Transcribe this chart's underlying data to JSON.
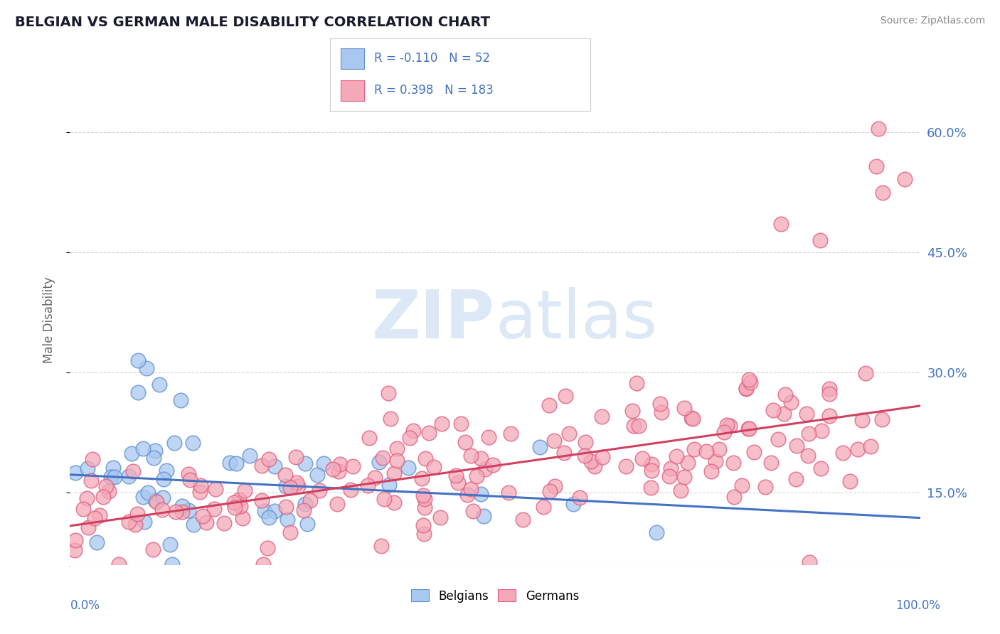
{
  "title": "BELGIAN VS GERMAN MALE DISABILITY CORRELATION CHART",
  "source": "Source: ZipAtlas.com",
  "ylabel": "Male Disability",
  "legend_belgians": "Belgians",
  "legend_germans": "Germans",
  "belgian_r": -0.11,
  "belgian_n": 52,
  "german_r": 0.398,
  "german_n": 183,
  "belgian_color": "#a8c8f0",
  "german_color": "#f4a8b8",
  "belgian_edge_color": "#6090d0",
  "german_edge_color": "#e06080",
  "belgian_line_color": "#4472c4",
  "german_line_color": "#d04060",
  "background_color": "#ffffff",
  "grid_color": "#c8c8c8",
  "watermark_color": "#dce8f5",
  "yticks": [
    0.15,
    0.3,
    0.45,
    0.6
  ],
  "ylabels": [
    "15.0%",
    "30.0%",
    "45.0%",
    "60.0%"
  ],
  "xlim": [
    0.0,
    1.0
  ],
  "ylim": [
    0.06,
    0.67
  ],
  "bel_line_start": 0.172,
  "bel_line_end": 0.118,
  "ger_line_start": 0.108,
  "ger_line_end": 0.258
}
